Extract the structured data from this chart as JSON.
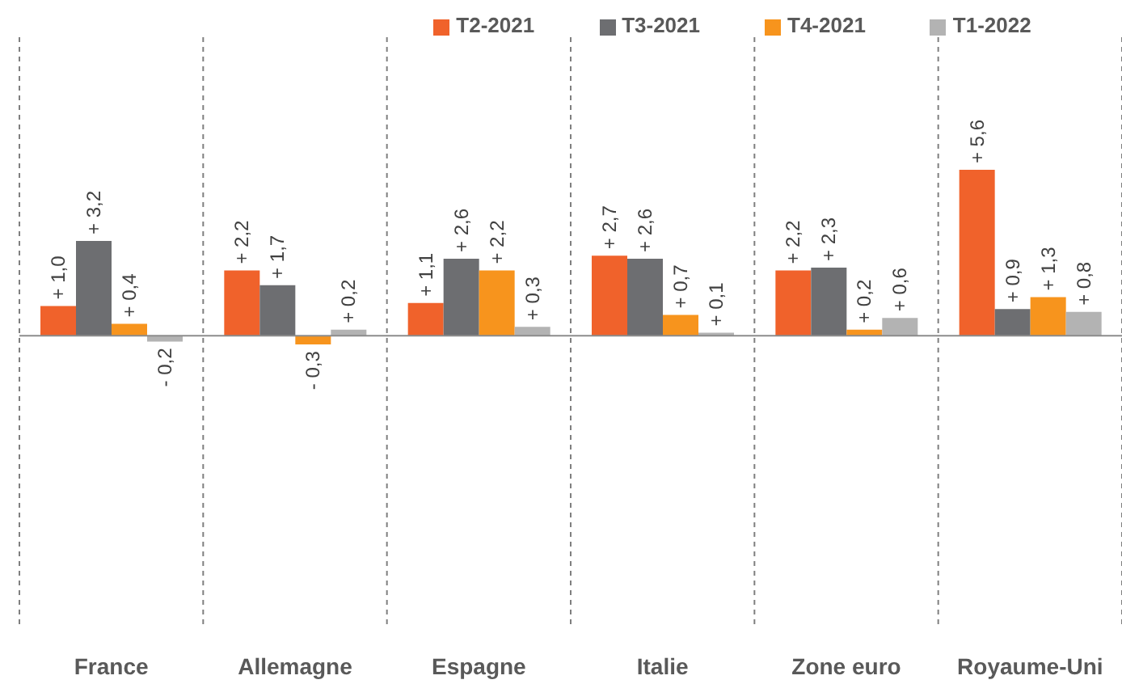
{
  "chart_data": {
    "type": "bar",
    "categories": [
      "France",
      "Allemagne",
      "Espagne",
      "Italie",
      "Zone euro",
      "Royaume-Uni"
    ],
    "series": [
      {
        "name": "T2-2021",
        "color": "#f0622b",
        "values": [
          1.0,
          2.2,
          1.1,
          2.7,
          2.2,
          5.6
        ],
        "value_labels": [
          "+ 1,0",
          "+ 2,2",
          "+ 1,1",
          "+ 2,7",
          "+ 2,2",
          "+ 5,6"
        ]
      },
      {
        "name": "T3-2021",
        "color": "#6d6e71",
        "values": [
          3.2,
          1.7,
          2.6,
          2.6,
          2.3,
          0.9
        ],
        "value_labels": [
          "+ 3,2",
          "+ 1,7",
          "+ 2,6",
          "+ 2,6",
          "+ 2,3",
          "+ 0,9"
        ]
      },
      {
        "name": "T4-2021",
        "color": "#f7941d",
        "values": [
          0.4,
          -0.3,
          2.2,
          0.7,
          0.2,
          1.3
        ],
        "value_labels": [
          "+ 0,4",
          "- 0,3",
          "+ 2,2",
          "+ 0,7",
          "+ 0,2",
          "+ 1,3"
        ]
      },
      {
        "name": "T1-2022",
        "color": "#b3b3b3",
        "values": [
          -0.2,
          0.2,
          0.3,
          0.1,
          0.6,
          0.8
        ],
        "value_labels": [
          "- 0,2",
          "+ 0,2",
          "+ 0,3",
          "+ 0,1",
          "+ 0,6",
          "+ 0,8"
        ]
      }
    ],
    "grid": "x",
    "legend": "top"
  }
}
